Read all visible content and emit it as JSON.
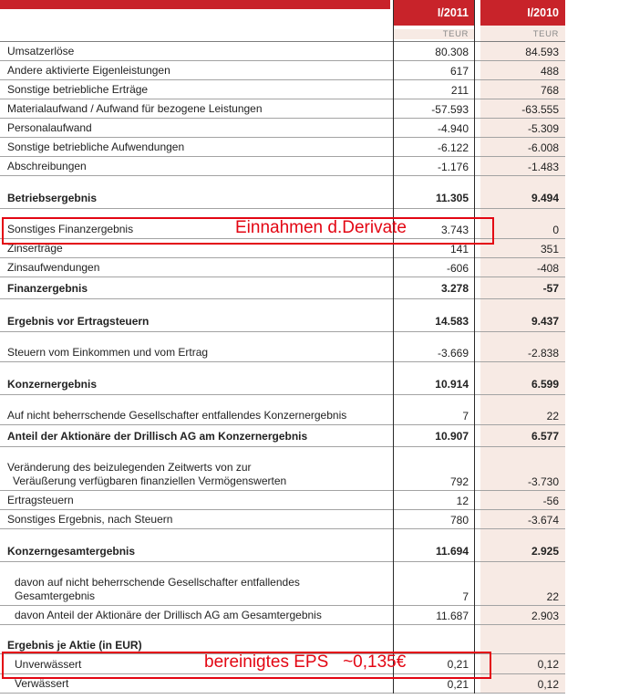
{
  "table": {
    "columns": [
      "I/2011",
      "I/2010"
    ],
    "unit_label": "TEUR",
    "rows": [
      {
        "label": "Umsatzerlöse",
        "v1": "80.308",
        "v2": "84.593"
      },
      {
        "label": "Andere aktivierte Eigenleistungen",
        "v1": "617",
        "v2": "488"
      },
      {
        "label": "Sonstige betriebliche Erträge",
        "v1": "211",
        "v2": "768"
      },
      {
        "label": "Materialaufwand / Aufwand für bezogene Leistungen",
        "v1": "-57.593",
        "v2": "-63.555"
      },
      {
        "label": "Personalaufwand",
        "v1": "-4.940",
        "v2": "-5.309"
      },
      {
        "label": "Sonstige betriebliche Aufwendungen",
        "v1": "-6.122",
        "v2": "-6.008"
      },
      {
        "label": "Abschreibungen",
        "v1": "-1.176",
        "v2": "-1.483"
      },
      {
        "label": "Betriebsergebnis",
        "v1": "11.305",
        "v2": "9.494",
        "bold": true,
        "gap_before": true
      },
      {
        "label": "Sonstiges Finanzergebnis",
        "v1": "3.743",
        "v2": "0",
        "gap_before": true
      },
      {
        "label": "Zinserträge",
        "v1": "141",
        "v2": "351"
      },
      {
        "label": "Zinsaufwendungen",
        "v1": "-606",
        "v2": "-408"
      },
      {
        "label": "Finanzergebnis",
        "v1": "3.278",
        "v2": "-57",
        "bold": true
      },
      {
        "label": "Ergebnis vor Ertragsteuern",
        "v1": "14.583",
        "v2": "9.437",
        "bold": true,
        "gap_before": true
      },
      {
        "label": "Steuern vom Einkommen und vom Ertrag",
        "v1": "-3.669",
        "v2": "-2.838",
        "gap_before": true
      },
      {
        "label": "Konzernergebnis",
        "v1": "10.914",
        "v2": "6.599",
        "bold": true,
        "gap_before": true
      },
      {
        "label": "Auf nicht beherrschende Gesellschafter entfallendes Konzernergebnis",
        "v1": "7",
        "v2": "22",
        "gap_before": true
      },
      {
        "label": "Anteil der Aktionäre der Drillisch AG am Konzernergebnis",
        "v1": "10.907",
        "v2": "6.577",
        "bold": true
      },
      {
        "label": "Veränderung des beizulegenden Zeitwerts von zur",
        "label2": "Veräußerung verfügbaren finanziellen Vermögenswerten",
        "v1": "792",
        "v2": "-3.730",
        "gap_before": true,
        "indent2": true
      },
      {
        "label": "Ertragsteuern",
        "v1": "12",
        "v2": "-56"
      },
      {
        "label": "Sonstiges Ergebnis, nach Steuern",
        "v1": "780",
        "v2": "-3.674"
      },
      {
        "label": "Konzerngesamtergebnis",
        "v1": "11.694",
        "v2": "2.925",
        "bold": true,
        "gap_before": true
      },
      {
        "label": "davon auf nicht beherrschende Gesellschafter entfallendes",
        "label2": "Gesamtergebnis",
        "v1": "7",
        "v2": "22",
        "gap_before": true,
        "indent": true
      },
      {
        "label": "davon Anteil der Aktionäre der Drillisch AG am Gesamtergebnis",
        "v1": "11.687",
        "v2": "2.903",
        "indent": true
      },
      {
        "label": "Ergebnis je Aktie (in EUR)",
        "v1": "",
        "v2": "",
        "bold": true,
        "heading": true,
        "gap_before": true
      },
      {
        "label": "Unverwässert",
        "v1": "0,21",
        "v2": "0,12",
        "indent": true,
        "unverw": true
      },
      {
        "label": "Verwässert",
        "v1": "0,21",
        "v2": "0,12",
        "indent": true
      }
    ]
  },
  "annotations": [
    {
      "text": "Einnahmen d.Derivate"
    },
    {
      "text": "bereinigtes EPS   ~0,135€"
    }
  ],
  "colors": {
    "header_red": "#c8232a",
    "column_pink": "#f7eae4",
    "annotation_red": "#e30613"
  }
}
